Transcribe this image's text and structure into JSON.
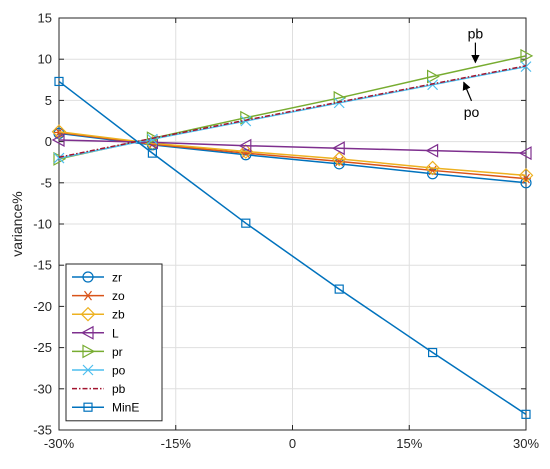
{
  "chart_data": {
    "type": "line",
    "ylabel": "variance%",
    "xlabel": "",
    "x": [
      -30,
      -18,
      -6,
      6,
      18,
      30
    ],
    "xticks": [
      -30,
      -15,
      0,
      15,
      30
    ],
    "xtick_labels": [
      "-30%",
      "-15%",
      "0",
      "15%",
      "30%"
    ],
    "xlim": [
      -30,
      30
    ],
    "ylim": [
      -35,
      15
    ],
    "yticks": [
      15,
      10,
      5,
      0,
      -5,
      -10,
      -15,
      -20,
      -25,
      -30,
      -35
    ],
    "ytick_labels": [
      "15",
      "10",
      "5",
      "0",
      "-5",
      "-10",
      "-15",
      "-20",
      "-25",
      "-30",
      "-35"
    ],
    "grid": true,
    "legend_position": "bottom-left",
    "series": [
      {
        "name": "zr",
        "color": "#0072BD",
        "marker": "circle",
        "values": [
          1.0,
          -0.4,
          -1.6,
          -2.7,
          -3.9,
          -5.0
        ]
      },
      {
        "name": "zo",
        "color": "#D95319",
        "marker": "asterisk",
        "values": [
          1.1,
          -0.3,
          -1.4,
          -2.4,
          -3.5,
          -4.5
        ]
      },
      {
        "name": "zb",
        "color": "#EDB120",
        "marker": "diamond",
        "values": [
          1.2,
          -0.2,
          -1.2,
          -2.1,
          -3.2,
          -4.1
        ]
      },
      {
        "name": "L",
        "color": "#7E2F8E",
        "marker": "triangle-left",
        "values": [
          0.2,
          -0.1,
          -0.5,
          -0.8,
          -1.1,
          -1.4
        ]
      },
      {
        "name": "pr",
        "color": "#77AC30",
        "marker": "triangle-right",
        "values": [
          -2.1,
          0.4,
          2.9,
          5.3,
          7.9,
          10.4
        ]
      },
      {
        "name": "po",
        "color": "#4DBEEE",
        "marker": "x",
        "values": [
          -2.0,
          0.3,
          2.5,
          4.7,
          6.9,
          9.1
        ]
      },
      {
        "name": "pb",
        "color": "#A2142F",
        "marker": "none",
        "dash": true,
        "values": [
          -1.9,
          0.4,
          2.6,
          4.8,
          7.0,
          9.2
        ]
      },
      {
        "name": "MinE",
        "color": "#0072BD",
        "marker": "square",
        "values": [
          7.3,
          -1.4,
          -9.9,
          -17.9,
          -25.6,
          -33.1
        ]
      }
    ],
    "annotations": [
      {
        "text": "pb",
        "x": 23.5,
        "y": 12.5,
        "arrow_to": [
          23.5,
          9.6
        ]
      },
      {
        "text": "po",
        "x": 23.0,
        "y": 3.0,
        "arrow_to": [
          22.0,
          7.2
        ]
      }
    ]
  }
}
